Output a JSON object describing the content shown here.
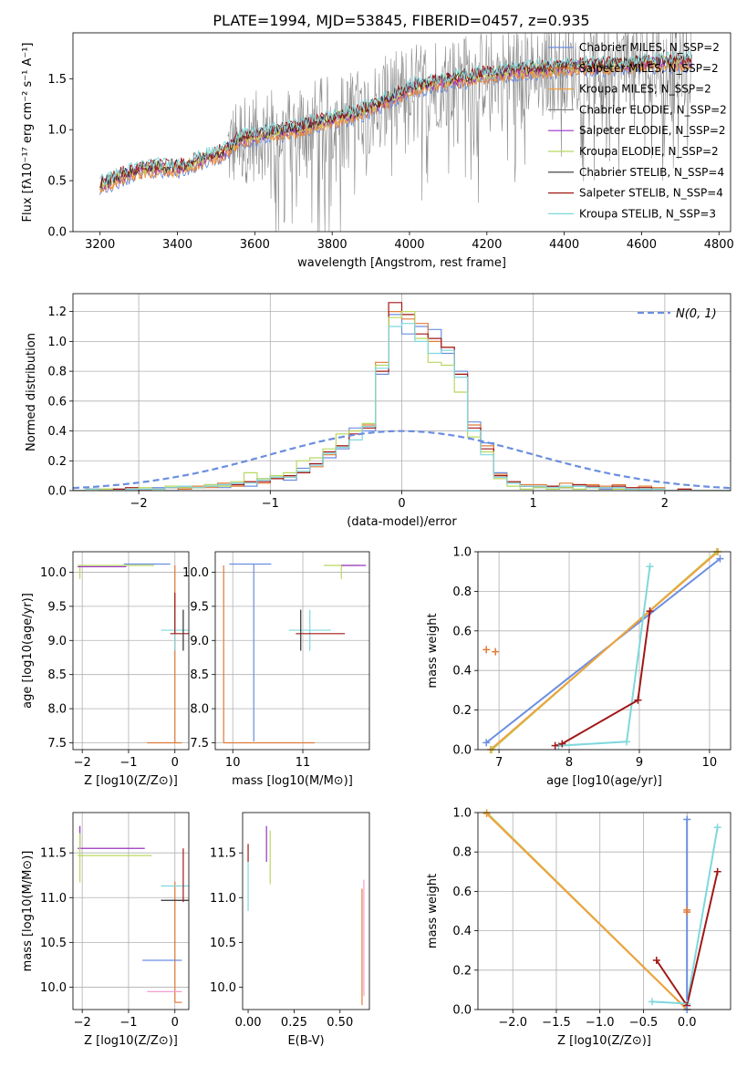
{
  "figure": {
    "title": "PLATE=1994, MJD=53845, FIBERID=0457, z=0.935"
  },
  "chart_data": [
    {
      "id": "spectrum",
      "type": "line",
      "xlabel": "wavelength [Angstrom, rest frame]",
      "ylabel": "Flux [fλ10⁻¹⁷ erg cm⁻² s⁻¹ A⁻¹]",
      "xlim": [
        3130,
        4830
      ],
      "ylim": [
        0,
        1.95
      ],
      "xticks": [
        3200,
        3400,
        3600,
        3800,
        4000,
        4200,
        4400,
        4600,
        4800
      ],
      "yticks": [
        0.0,
        0.5,
        1.0,
        1.5
      ],
      "grid": false,
      "legend_position": "upper right",
      "series": [
        {
          "name": "Chabrier MILES, N_SSP=2",
          "color": "#6a8ee0"
        },
        {
          "name": "Salpeter MILES, N_SSP=2",
          "color": "#e07b39"
        },
        {
          "name": "Kroupa MILES, N_SSP=2",
          "color": "#f0a040"
        },
        {
          "name": "Chabrier ELODIE, N_SSP=2",
          "color": "#808080"
        },
        {
          "name": "Salpeter ELODIE, N_SSP=2",
          "color": "#9b30c8"
        },
        {
          "name": "Kroupa ELODIE, N_SSP=2",
          "color": "#b8d860"
        },
        {
          "name": "Chabrier STELIB, N_SSP=4",
          "color": "#303030"
        },
        {
          "name": "Salpeter STELIB, N_SSP=4",
          "color": "#a01818"
        },
        {
          "name": "Kroupa STELIB, N_SSP=3",
          "color": "#7fd8dc"
        }
      ],
      "data_envelope": {
        "x": [
          3200,
          3260,
          3320,
          3400,
          3460,
          3520,
          3560,
          3620,
          3700,
          3780,
          3860,
          3940,
          4000,
          4060,
          4140,
          4220,
          4300,
          4380,
          4460,
          4540,
          4620,
          4700,
          4730
        ],
        "y": [
          0.45,
          0.55,
          0.62,
          0.62,
          0.7,
          0.78,
          0.9,
          0.95,
          1.0,
          1.08,
          1.15,
          1.28,
          1.4,
          1.45,
          1.5,
          1.55,
          1.58,
          1.6,
          1.62,
          1.63,
          1.65,
          1.66,
          1.67
        ]
      },
      "noise_band": {
        "x_start": 3530,
        "x_end": 4730
      }
    },
    {
      "id": "residuals",
      "type": "step",
      "xlabel": "(data-model)/error",
      "ylabel": "Normed distribution",
      "xlim": [
        -2.5,
        2.5
      ],
      "ylim": [
        0,
        1.32
      ],
      "xticks": [
        -2,
        -1,
        0,
        1,
        2
      ],
      "yticks": [
        0.0,
        0.2,
        0.4,
        0.6,
        0.8,
        1.0,
        1.2
      ],
      "grid": true,
      "legend_position": "upper right",
      "normal_curve": {
        "name": "N(0, 1)",
        "color": "#6a8ee0",
        "style": "dashed"
      },
      "bin_edges": [
        -2.5,
        -2.4,
        -2.3,
        -2.2,
        -2.1,
        -2.0,
        -1.9,
        -1.8,
        -1.7,
        -1.6,
        -1.5,
        -1.4,
        -1.3,
        -1.2,
        -1.1,
        -1.0,
        -0.9,
        -0.8,
        -0.7,
        -0.6,
        -0.5,
        -0.4,
        -0.3,
        -0.2,
        -0.1,
        0.0,
        0.1,
        0.2,
        0.3,
        0.4,
        0.5,
        0.6,
        0.7,
        0.8,
        0.9,
        1.0,
        1.1,
        1.2,
        1.3,
        1.4,
        1.5,
        1.6,
        1.7,
        1.8,
        1.9,
        2.0,
        2.1,
        2.2,
        2.3,
        2.4,
        2.5
      ],
      "series": [
        {
          "color": "#6a8ee0",
          "values": [
            0,
            0.01,
            0,
            0.01,
            0,
            0.01,
            0.02,
            0,
            0.03,
            0.02,
            0.04,
            0.02,
            0.05,
            0.03,
            0.08,
            0.1,
            0.07,
            0.15,
            0.18,
            0.22,
            0.28,
            0.42,
            0.4,
            0.78,
            1.18,
            1.05,
            1.1,
            1.08,
            0.92,
            0.8,
            0.46,
            0.32,
            0.12,
            0.05,
            0.03,
            0.02,
            0.03,
            0.02,
            0.03,
            0.02,
            0.01,
            0.02,
            0.01,
            0,
            0.01,
            0,
            0,
            0,
            0,
            0
          ]
        },
        {
          "color": "#e07b39",
          "values": [
            0,
            0,
            0.01,
            0,
            0.01,
            0,
            0.01,
            0.02,
            0.01,
            0.03,
            0.02,
            0.05,
            0.03,
            0.06,
            0.05,
            0.08,
            0.09,
            0.12,
            0.16,
            0.24,
            0.3,
            0.4,
            0.44,
            0.86,
            1.2,
            1.15,
            1.12,
            1.0,
            0.96,
            0.78,
            0.44,
            0.3,
            0.11,
            0.06,
            0.04,
            0.04,
            0.03,
            0.05,
            0.04,
            0.04,
            0.03,
            0.04,
            0.01,
            0.03,
            0.02,
            0,
            0.01,
            0,
            0,
            0
          ]
        },
        {
          "color": "#a01818",
          "values": [
            0,
            0.01,
            0,
            0.01,
            0.02,
            0,
            0.01,
            0.02,
            0.02,
            0.02,
            0.03,
            0.04,
            0.04,
            0.06,
            0.06,
            0.08,
            0.1,
            0.12,
            0.18,
            0.26,
            0.3,
            0.38,
            0.42,
            0.8,
            1.26,
            1.18,
            1.05,
            1.02,
            0.96,
            0.78,
            0.42,
            0.28,
            0.1,
            0.06,
            0.03,
            0.03,
            0.03,
            0.02,
            0.04,
            0.03,
            0.02,
            0.03,
            0.02,
            0.02,
            0.01,
            0,
            0.01,
            0,
            0,
            0
          ]
        },
        {
          "color": "#b8d860",
          "values": [
            0,
            0,
            0.01,
            0,
            0.01,
            0.02,
            0,
            0.03,
            0.02,
            0.02,
            0.04,
            0.03,
            0.06,
            0.12,
            0.08,
            0.1,
            0.12,
            0.2,
            0.22,
            0.28,
            0.38,
            0.4,
            0.45,
            0.84,
            1.16,
            1.2,
            1.02,
            0.86,
            0.84,
            0.66,
            0.36,
            0.26,
            0.08,
            0.03,
            0.01,
            0.02,
            0.01,
            0.02,
            0.01,
            0.02,
            0,
            0.01,
            0,
            0.01,
            0,
            0,
            0,
            0,
            0,
            0
          ]
        },
        {
          "color": "#7fd8dc",
          "values": [
            0,
            0.01,
            0,
            0,
            0.01,
            0.01,
            0.01,
            0.02,
            0.03,
            0.02,
            0.03,
            0.04,
            0.05,
            0.05,
            0.07,
            0.09,
            0.09,
            0.13,
            0.17,
            0.25,
            0.29,
            0.34,
            0.43,
            0.82,
            1.1,
            1.12,
            1.0,
            0.92,
            0.94,
            0.76,
            0.4,
            0.24,
            0.09,
            0.05,
            0.03,
            0.03,
            0.02,
            0.03,
            0.03,
            0.02,
            0.02,
            0.02,
            0.01,
            0.01,
            0.01,
            0,
            0,
            0,
            0,
            0
          ]
        }
      ]
    },
    {
      "id": "age_vs_Z",
      "type": "errorbar",
      "xlabel": "Z [log10(Z/Z⊙)]",
      "ylabel": "age  [log10(age/yr)]",
      "xlim": [
        -2.2,
        0.3
      ],
      "ylim": [
        7.4,
        10.3
      ],
      "xticks": [
        -2,
        -1,
        0
      ],
      "yticks": [
        7.5,
        8.0,
        8.5,
        9.0,
        9.5,
        10.0
      ],
      "grid": true,
      "points": [
        {
          "color": "#6a8ee0",
          "x": -0.3,
          "y": 10.12,
          "xerr": [
            0.8,
            0.2
          ],
          "yerr": [
            0.0,
            0.0
          ]
        },
        {
          "color": "#b8d860",
          "x": -2.05,
          "y": 10.1,
          "xerr": [
            0.05,
            1.6
          ],
          "yerr": [
            0.2,
            0.0
          ]
        },
        {
          "color": "#9b30c8",
          "x": -2.05,
          "y": 10.08,
          "xerr": [
            0.05,
            1.0
          ],
          "yerr": [
            0.0,
            0.0
          ]
        },
        {
          "color": "#e07b39",
          "x": 0.0,
          "y": 7.5,
          "xerr": [
            0.6,
            0.15
          ],
          "yerr": [
            0.0,
            2.6
          ]
        },
        {
          "color": "#7fd8dc",
          "x": 0.0,
          "y": 9.15,
          "xerr": [
            0.3,
            0.3
          ],
          "yerr": [
            0.3,
            0.3
          ]
        },
        {
          "color": "#a01818",
          "x": 0.0,
          "y": 9.1,
          "xerr": [
            0.1,
            0.3
          ],
          "yerr": [
            0.0,
            0.6
          ]
        },
        {
          "color": "#303030",
          "x": 0.18,
          "y": 9.2,
          "xerr": [
            0.0,
            0.0
          ],
          "yerr": [
            0.35,
            0.25
          ]
        }
      ]
    },
    {
      "id": "age_vs_mass",
      "type": "errorbar",
      "xlabel": "mass [log10(M/M⊙)]",
      "ylabel": "",
      "xlim": [
        9.75,
        11.95
      ],
      "ylim": [
        7.4,
        10.3
      ],
      "xticks": [
        10,
        11
      ],
      "yticks": [
        7.5,
        8.0,
        8.5,
        9.0,
        9.5,
        10.0
      ],
      "grid": true,
      "points": [
        {
          "color": "#6a8ee0",
          "x": 10.3,
          "y": 10.12,
          "xerr": [
            0.35,
            0.25
          ],
          "yerr": [
            2.6,
            0.0
          ]
        },
        {
          "color": "#e07b39",
          "x": 9.87,
          "y": 7.5,
          "xerr": [
            0.0,
            1.3
          ],
          "yerr": [
            0.0,
            2.6
          ]
        },
        {
          "color": "#b8d860",
          "x": 11.55,
          "y": 10.1,
          "xerr": [
            0.25,
            0.25
          ],
          "yerr": [
            0.2,
            0.0
          ]
        },
        {
          "color": "#9b30c8",
          "x": 11.65,
          "y": 10.1,
          "xerr": [
            0.1,
            0.25
          ],
          "yerr": [
            0.0,
            0.0
          ]
        },
        {
          "color": "#7fd8dc",
          "x": 11.1,
          "y": 9.15,
          "xerr": [
            0.3,
            0.3
          ],
          "yerr": [
            0.3,
            0.3
          ]
        },
        {
          "color": "#a01818",
          "x": 11.2,
          "y": 9.1,
          "xerr": [
            0.3,
            0.4
          ],
          "yerr": [
            0.0,
            0.0
          ]
        },
        {
          "color": "#303030",
          "x": 10.97,
          "y": 9.2,
          "xerr": [
            0.0,
            0.0
          ],
          "yerr": [
            0.35,
            0.25
          ]
        }
      ]
    },
    {
      "id": "massweight_vs_age",
      "type": "line",
      "xlabel": "age  [log10(age/yr)]",
      "ylabel": "mass weight",
      "xlim": [
        6.7,
        10.3
      ],
      "ylim": [
        0,
        1
      ],
      "xticks": [
        7,
        8,
        9,
        10
      ],
      "yticks": [
        0.0,
        0.2,
        0.4,
        0.6,
        0.8,
        1.0
      ],
      "grid": true,
      "series": [
        {
          "color": "#6a8ee0",
          "x": [
            6.82,
            10.15
          ],
          "y": [
            0.035,
            0.965
          ]
        },
        {
          "color": "#b8d860",
          "x": [
            6.9,
            10.1
          ],
          "y": [
            0.0,
            1.0
          ]
        },
        {
          "color": "#f0a040",
          "x": [
            6.88,
            10.12
          ],
          "y": [
            0.0,
            1.0
          ]
        },
        {
          "color": "#7fd8dc",
          "x": [
            7.85,
            8.82,
            9.15
          ],
          "y": [
            0.02,
            0.04,
            0.925
          ]
        },
        {
          "color": "#a01818",
          "x": [
            7.8,
            7.9,
            8.98,
            9.15
          ],
          "y": [
            0.02,
            0.03,
            0.25,
            0.7
          ]
        },
        {
          "color": "#e07b39",
          "x": [
            6.82,
            6.95
          ],
          "y": [
            0.505,
            0.495
          ],
          "markers_only": true
        }
      ]
    },
    {
      "id": "mass_vs_Z",
      "type": "errorbar",
      "xlabel": "Z [log10(Z/Z⊙)]",
      "ylabel": "mass [log10(M/M⊙)]",
      "xlim": [
        -2.2,
        0.3
      ],
      "ylim": [
        9.75,
        11.95
      ],
      "xticks": [
        -2,
        -1,
        0
      ],
      "yticks": [
        10.0,
        10.5,
        11.0,
        11.5
      ],
      "grid": true,
      "points": [
        {
          "color": "#9b30c8",
          "x": -2.05,
          "y": 11.55,
          "xerr": [
            0.05,
            1.4
          ],
          "yerr": [
            0.0,
            0.25
          ]
        },
        {
          "color": "#b8d860",
          "x": -2.05,
          "y": 11.47,
          "xerr": [
            0.05,
            1.55
          ],
          "yerr": [
            0.3,
            0.25
          ]
        },
        {
          "color": "#e07b39",
          "x": 0.0,
          "y": 9.83,
          "xerr": [
            0.0,
            0.15
          ],
          "yerr": [
            0.0,
            1.35
          ]
        },
        {
          "color": "#f4a0d0",
          "x": 0.0,
          "y": 9.95,
          "xerr": [
            0.6,
            0.15
          ],
          "yerr": [
            0.0,
            0.0
          ]
        },
        {
          "color": "#6a8ee0",
          "x": -0.3,
          "y": 10.3,
          "xerr": [
            0.4,
            0.45
          ],
          "yerr": [
            0.0,
            0.0
          ]
        },
        {
          "color": "#7fd8dc",
          "x": 0.0,
          "y": 11.13,
          "xerr": [
            0.3,
            0.3
          ],
          "yerr": [
            0.0,
            0.0
          ]
        },
        {
          "color": "#303030",
          "x": 0.0,
          "y": 10.97,
          "xerr": [
            0.3,
            0.3
          ],
          "yerr": [
            0.0,
            0.0
          ]
        },
        {
          "color": "#a01818",
          "x": 0.18,
          "y": 11.3,
          "xerr": [
            0.0,
            0.0
          ],
          "yerr": [
            0.35,
            0.25
          ]
        }
      ]
    },
    {
      "id": "mass_vs_EBV",
      "type": "errorbar",
      "xlabel": "E(B-V)",
      "ylabel": "",
      "xlim": [
        -0.03,
        0.66
      ],
      "ylim": [
        9.75,
        11.95
      ],
      "xticks": [
        0.0,
        0.25,
        0.5
      ],
      "yticks": [
        10.0,
        10.5,
        11.0,
        11.5
      ],
      "grid": false,
      "points": [
        {
          "color": "#a01818",
          "x": 0.0,
          "y": 11.5,
          "xerr": [
            0.0,
            0.0
          ],
          "yerr": [
            0.1,
            0.1
          ]
        },
        {
          "color": "#7fd8dc",
          "x": 0.0,
          "y": 11.1,
          "xerr": [
            0.0,
            0.0
          ],
          "yerr": [
            0.25,
            0.3
          ]
        },
        {
          "color": "#9b30c8",
          "x": 0.1,
          "y": 11.6,
          "xerr": [
            0.0,
            0.0
          ],
          "yerr": [
            0.2,
            0.2
          ]
        },
        {
          "color": "#b8d860",
          "x": 0.12,
          "y": 11.45,
          "xerr": [
            0.0,
            0.0
          ],
          "yerr": [
            0.3,
            0.3
          ]
        },
        {
          "color": "#e07b39",
          "x": 0.62,
          "y": 10.5,
          "xerr": [
            0.0,
            0.0
          ],
          "yerr": [
            0.7,
            0.6
          ]
        },
        {
          "color": "#f4a0d0",
          "x": 0.63,
          "y": 10.7,
          "xerr": [
            0.0,
            0.0
          ],
          "yerr": [
            0.8,
            0.5
          ]
        }
      ]
    },
    {
      "id": "massweight_vs_Z",
      "type": "line",
      "xlabel": "Z [log10(Z/Z⊙)]",
      "ylabel": "mass weight",
      "xlim": [
        -2.4,
        0.5
      ],
      "ylim": [
        0,
        1
      ],
      "xticks": [
        -2.0,
        -1.5,
        -1.0,
        -0.5,
        0.0
      ],
      "yticks": [
        0.0,
        0.2,
        0.4,
        0.6,
        0.8,
        1.0
      ],
      "grid": true,
      "series": [
        {
          "color": "#b8d860",
          "x": [
            -2.3,
            0.0
          ],
          "y": [
            1.0,
            0.0
          ]
        },
        {
          "color": "#f0a040",
          "x": [
            -2.3,
            0.0
          ],
          "y": [
            0.995,
            0.0
          ]
        },
        {
          "color": "#7fd8dc",
          "x": [
            -0.4,
            0.0,
            0.35
          ],
          "y": [
            0.04,
            0.03,
            0.925
          ]
        },
        {
          "color": "#a01818",
          "x": [
            -0.35,
            0.0,
            0.35
          ],
          "y": [
            0.25,
            0.02,
            0.7
          ]
        },
        {
          "color": "#6a8ee0",
          "x": [
            0.0,
            0.0
          ],
          "y": [
            0.0,
            0.965
          ]
        },
        {
          "color": "#e07b39",
          "x": [
            0.0,
            0.0
          ],
          "y": [
            0.495,
            0.505
          ],
          "markers_only": true
        }
      ]
    }
  ]
}
